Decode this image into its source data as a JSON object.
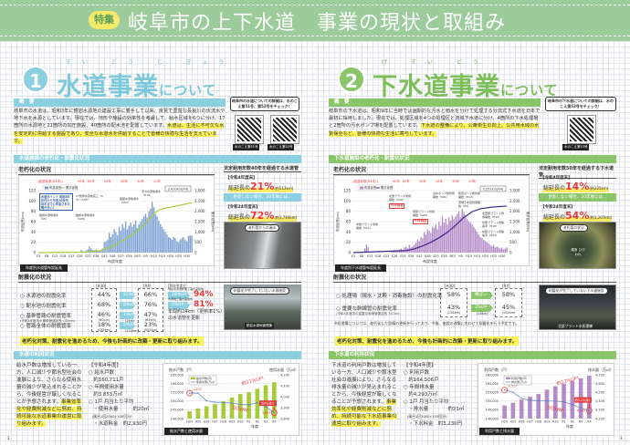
{
  "header": {
    "badge": "特集",
    "title": "岐阜市の上下水道　事業の現状と取組み"
  },
  "colors": {
    "water": "#8ccfe0",
    "sewer": "#8bc56a",
    "band": "#9ccc9c",
    "highlight": "#fbf35a",
    "accent_red": "#e6393b",
    "water_bar": "#7b9fd4",
    "water_line": "#a6cc3a",
    "sewer_bar": "#b48ac7",
    "sewer_line": "#3b2c8c"
  },
  "water": {
    "number": "1",
    "title_main": "水道事業",
    "title_suffix": "について",
    "ruby": "すい どう じ ぎょう",
    "overview_label": "概　要",
    "overview_text": "岐阜市の水道は、昭和3年に鏡岩水源地の建設工事に着手して以来、良質で豊富な長良川の伏流水や地下水を水源としています。現在では、地形や施設の効率性を考慮して、給水区域を6つに分け、17箇所の水源地と21箇所の加圧施設、40箇所の配水池を配置しています。",
    "overview_highlight": "水道は、生活に不可欠な水を安定的に供給する施設であり、安全な水道水を供給することで皆様の快適な生活を支えています。",
    "qr_bubble": "岐阜市の水道についての詳細は、水のこえ第51号、第52号をチェック！",
    "qr_labels": [
      "水のこえ第51号",
      "水のこえ第52号"
    ],
    "section_aging": "水道施設の老朽化・耐震化状況",
    "aging_label": "老朽化の状況",
    "aging_chart_caption": "年度別水道管布設延長",
    "aging_panel": {
      "title": "法定耐用年数40年を経過する水道管",
      "now_year": "【令和4年度末】",
      "now_prefix": "総延長の",
      "now_pct": "21%",
      "now_sub": "(約512km)",
      "note": "更新しない場合、20年後には…",
      "future_year": "【令和24年度末】",
      "future_prefix": "総延長の",
      "future_pct": "72%",
      "future_sub": "(約1,740km)",
      "photo_label": "老朽管からの漏水"
    },
    "quake_label": "耐震化の状況",
    "quake_headers": [
      "[H30]",
      "[R4]",
      "[R6(予定)]"
    ],
    "quake_rows": [
      {
        "label": "○ 水源池の耐震化率",
        "sub": "",
        "h30": "44%",
        "h30_km": "",
        "up": "22%UP",
        "r4": "66%",
        "r4_km": "",
        "up2": "28%UP",
        "r6": "94%",
        "r6_note": "現在水源池整備工事の実施中"
      },
      {
        "label": "○ 配水池の耐震化率",
        "sub": "",
        "h30": "68%",
        "h30_km": "",
        "up": "8%UP",
        "r4": "76%",
        "r4_km": "",
        "up2": "5%UP",
        "r6": "81%",
        "r6_note": "水源地工事の実施中"
      },
      {
        "label": "○ 基幹管路の耐震管率",
        "sub": "(令和4年度末の基幹管路延長 132km)",
        "h30": "46%",
        "h30_km": "(60km)",
        "up": "1%UP",
        "up_km": "(2km)",
        "r4": "47%",
        "r4_km": "(62km)"
      },
      {
        "label": "○ 管路全体の耐震管率",
        "sub": "",
        "h30": "18%",
        "h30_km": "(432km)",
        "up": "5%UP",
        "up_km": "(120km)",
        "r4": "23%",
        "r4_km": "(552km)"
      }
    ],
    "quake_plan": "年間約24km（更新率1%）の水道管を更新",
    "quake_photo_label": "耐震化が完了していない水源施設",
    "quake_photo_caption": "鏡岩水源地管理棟",
    "quake_highlight": "老朽化対策、耐震化を進めるため、今後も計画的に改築・更新に取り組みます。",
    "section_usage": "水道の利用状況",
    "usage_text": "給水戸数は増加している一方、人口減少や節水型社会の進展により、さらなる使用水量の減少が見込まれることから、今後経営が厳しくなることが予想されます。",
    "usage_highlight": "事業効率化や経費削減などに努め、持続可能な水道事業の運営に取り組みます。",
    "usage_info": {
      "year": "【令和4年度】",
      "items": [
        "○ 給水戸数",
        "　約160,711戸",
        "○ 年間使用水量",
        "　約3,853万㎥",
        "○ 1戸 月当たり平均",
        "　・使用水量　　　約20㎥",
        "　(風呂1回200ℓ×100回分)",
        "　・水道料金　約2,930円"
      ]
    },
    "usage_chart_caption": "給水戸数と使用水量",
    "page": "2"
  },
  "sewer": {
    "number": "2",
    "title_main": "下水道事業",
    "title_suffix": "について",
    "ruby": "げ すい どう",
    "overview_label": "概　要",
    "overview_text": "岐阜市の下水道は、昭和9年に当時では画期的な汚水と雨水を分けて処理する分流式下水道を日本で最初に採用しました。現在では、処理区域を4つの処理区と流域下水道に分け、4箇所の下水処理場と2箇所の汚水ポンプ場を配置しています。",
    "overview_highlight": "下水道の整備により、公衆衛生の向上、公共用水域の水質保全など、皆様の快適な生活に寄与しています。",
    "qr_bubble": "岐阜市の下水道についての詳細は、水のこえ第53号をチェック！",
    "qr_labels": [
      "水のこえ第53号"
    ],
    "section_aging": "下水道施設の老朽化・耐震化状況",
    "aging_label": "老朽化の状況",
    "aging_chart_caption": "年度別下水道管布設延長",
    "aging_panel": {
      "title": "法定耐用年数50年を経過する下水道管",
      "now_year": "【令和4年度末】",
      "now_prefix": "総延長の",
      "now_pct": "14%",
      "now_sub": "(約325km)",
      "note": "更新しない場合、20年後には…",
      "future_year": "【令和24年度末】",
      "future_prefix": "総延長の",
      "future_pct": "54%",
      "future_sub": "(約1,207km)",
      "photo_label": "老朽管の状況",
      "photo_sub": "腐食 ひびわれ"
    },
    "quake_label": "耐震化の状況",
    "quake_headers": [
      "[H30]",
      "[R4]"
    ],
    "quake_rows": [
      {
        "label": "○ 処理場（揚水・沈殿・消毒施設）の耐震化率",
        "sub": "",
        "h30": "58%",
        "h30_km": "",
        "up": "横ばい",
        "r4": "58%",
        "r4_km": ""
      },
      {
        "label": "○ 重要な幹線管の耐震化率",
        "sub": "(令和4年度末の重要な幹線管渠延長 341km)",
        "h30": "43%",
        "h30_km": "(138km)",
        "up": "2%UP",
        "up_km": "(16km)",
        "r4": "45%",
        "r4_km": "(154km)"
      }
    ],
    "quake_note": "※処理場については、老朽化した設備の更新を行っており、今後、施設の改築に合わせて耐震化を行う予定です。",
    "quake_photo_label": "耐震化が完了していない下水道施設",
    "quake_photo_caption": "北部プラント水処理棟",
    "quake_highlight": "老朽化対策、耐震化を進めるため、今後も計画的に改築・更新に取り組みます。",
    "section_usage": "下水道の利用状況",
    "usage_text": "下水道の利用戸数は増加している一方、人口減少や節水型社会の進展により、さらなる排水量の減少が見込まれることから、今後経営が厳しくなることが予想されます。",
    "usage_highlight": "事業効率化や経費削減などに努め、持続可能な下水道事業の運営に取り組みます。",
    "usage_info": {
      "year": "【令和4年度】",
      "items": [
        "○ 利用戸数",
        "　約164,506戸",
        "○ 年間排水量",
        "　約4,293万㎥",
        "○ 1戸 月当たり平均",
        "　・排水量　　　　約21㎥",
        "　(風呂1回200ℓ×105回分)",
        "　・下水料金　約3,230円"
      ]
    },
    "usage_chart_caption": "利用戸数と排水量",
    "page": "3"
  },
  "chart_data": [
    {
      "id": "water-aging",
      "type": "bar",
      "title": "",
      "xlabel": "布設年度",
      "ylabel": "布設延長(km)",
      "y2label": "累計延長(km)",
      "x_start_year": 1928,
      "x_tick_labels": [
        "S3",
        "S8",
        "S13",
        "S18",
        "S23",
        "S28",
        "S33",
        "S38",
        "S43",
        "S48",
        "S53",
        "S58",
        "S63",
        "H5",
        "H10",
        "H15",
        "H20",
        "H25",
        "H30"
      ],
      "ylim": [
        0,
        120
      ],
      "yticks": [
        0,
        20,
        40,
        60,
        80,
        100,
        120
      ],
      "y2lim": [
        0,
        3000
      ],
      "y2ticks": [
        0,
        500,
        1000,
        1500,
        2000,
        2500,
        3000
      ],
      "age_labels": [
        "(経過年数(R4末))",
        "90年",
        "60年",
        "50年",
        "40年",
        "30年",
        "20年"
      ],
      "series": [
        {
          "name": "布設延長",
          "values": [
            0,
            0,
            0,
            0,
            0,
            0,
            0,
            0,
            0,
            0,
            0,
            0,
            0,
            0,
            0,
            0,
            0,
            0,
            0,
            0,
            0,
            0,
            0,
            0,
            0,
            0,
            5,
            3,
            2,
            4,
            6,
            12,
            8,
            5,
            4,
            6,
            3,
            5,
            4,
            8,
            20,
            22,
            25,
            38,
            30,
            35,
            45,
            40,
            33,
            50,
            42,
            55,
            48,
            60,
            45,
            52,
            58,
            50,
            55,
            62,
            48,
            55,
            60,
            65,
            70,
            75,
            68,
            80,
            85,
            98,
            88,
            75,
            70,
            62,
            55,
            50,
            45,
            40,
            35,
            30,
            28,
            25,
            30,
            28,
            22,
            20,
            25,
            28,
            30,
            25,
            22,
            32,
            33,
            33
          ]
        },
        {
          "name": "累計延長",
          "points": [
            [
              1928,
              0
            ],
            [
              1955,
              20
            ],
            [
              1965,
              80
            ],
            [
              1970,
              200
            ],
            [
              1975,
              380
            ],
            [
              1980,
              620
            ],
            [
              1985,
              880
            ],
            [
              1990,
              1180
            ],
            [
              1995,
              1600
            ],
            [
              1998,
              1900
            ],
            [
              2002,
              2100
            ],
            [
              2010,
              2230
            ],
            [
              2021,
              2410
            ]
          ]
        }
      ],
      "annotations": [
        "鏡岩水源地通水（S5）",
        "雄総水源地通水（S28）",
        "27箇所水源地完工（S31～S38）",
        "水道ポイント 昭和50年代から平成10年代前半までに布設された管が多い！",
        "茜部水源地通水（S53）",
        "手力水源地通水（H10）",
        "2,410km(R4)"
      ]
    },
    {
      "id": "sewer-aging",
      "type": "bar",
      "title": "",
      "xlabel": "布設年度",
      "ylabel": "布設延長(km)",
      "y2label": "累計延長(km)",
      "x_start_year": 1928,
      "x_tick_labels": [
        "S3",
        "S8",
        "S13",
        "S18",
        "S23",
        "S28",
        "S33",
        "S38",
        "S43",
        "S48",
        "S53",
        "S58",
        "S63",
        "H5",
        "H10",
        "H15",
        "H20",
        "H25",
        "H30"
      ],
      "ylim": [
        0,
        120
      ],
      "yticks": [
        0,
        20,
        40,
        60,
        80,
        100,
        120
      ],
      "y2lim": [
        0,
        3000
      ],
      "y2ticks": [
        0,
        500,
        1000,
        1500,
        2000,
        2500,
        3000
      ],
      "age_labels": [
        "(経過年数(R4末))",
        "90年",
        "60年",
        "50年",
        "40年",
        "30年",
        "20年"
      ],
      "series": [
        {
          "name": "布設延長",
          "values": [
            0,
            0,
            0,
            0,
            0,
            0,
            0,
            8,
            15,
            10,
            0,
            0,
            0,
            0,
            0,
            0,
            0,
            0,
            0,
            0,
            0,
            0,
            0,
            3,
            2,
            5,
            4,
            3,
            6,
            8,
            5,
            10,
            12,
            8,
            15,
            10,
            12,
            15,
            20,
            25,
            22,
            30,
            28,
            40,
            35,
            45,
            42,
            38,
            50,
            48,
            55,
            45,
            60,
            52,
            70,
            58,
            65,
            55,
            68,
            62,
            72,
            65,
            70,
            75,
            80,
            68,
            85,
            78,
            72,
            65,
            60,
            58,
            55,
            50,
            45,
            40,
            35,
            30,
            28,
            25,
            22,
            20,
            18,
            15,
            12,
            15,
            10,
            12,
            10,
            8,
            10,
            6,
            8,
            10
          ]
        },
        {
          "name": "累計延長",
          "points": [
            [
              1928,
              0
            ],
            [
              1960,
              100
            ],
            [
              1965,
              180
            ],
            [
              1970,
              320
            ],
            [
              1975,
              500
            ],
            [
              1980,
              720
            ],
            [
              1985,
              980
            ],
            [
              1990,
              1320
            ],
            [
              1995,
              1700
            ],
            [
              2000,
              1980
            ],
            [
              2005,
              2120
            ],
            [
              2012,
              2200
            ],
            [
              2021,
              2252
            ]
          ]
        }
      ],
      "annotations": [
        "中部プラント供用開始（S12）",
        "北部プラント供用開始（S40）",
        "南部プラント供用開始（S40）",
        "浸水ポンプ場供用開始（S61）",
        "則武ポンプ場供用開始（H12）",
        "流域下水道供用開始（H3）",
        "北西部プラント供用開始（H15）",
        "中部プラント改築着手（H18）",
        "中部プラント改築着手（H21）",
        "2,252km(R4)",
        "57年経過",
        "51年経過"
      ]
    },
    {
      "id": "water-usage",
      "type": "bar+line",
      "title": "",
      "xlabel": "年度",
      "ylabel": "給水戸数（戸）",
      "y2label": "使用水量（万㎥）",
      "categories": [
        "H24",
        "H25",
        "H26",
        "H27",
        "H28",
        "H29",
        "H30",
        "R1",
        "R2",
        "R3",
        "R4"
      ],
      "ylim": [
        140000,
        165000
      ],
      "yticks": [
        "140,000",
        "145,000",
        "150,000",
        "155,000",
        "160,000",
        "165,000"
      ],
      "y2lim": [
        3800,
        4200
      ],
      "y2ticks": [
        "3,800",
        "3,900",
        "4,000",
        "4,100",
        "4,200"
      ],
      "series": [
        {
          "name": "給水戸数(戸)",
          "values": [
            144200,
            145800,
            147000,
            148200,
            149800,
            152000,
            154000,
            155000,
            157000,
            159000,
            160711
          ]
        },
        {
          "name": "使用水量(万㎥)",
          "values": [
            4032,
            4032,
            3962,
            3950,
            3948,
            3940,
            3930,
            3925,
            3945,
            3910,
            3853
          ]
        }
      ],
      "marked_values": [
        "4,032",
        "3,853"
      ],
      "annotations": [
        "約11%UP!",
        "DOWN!",
        "約4%減少"
      ]
    },
    {
      "id": "sewer-usage",
      "type": "bar+line",
      "title": "",
      "xlabel": "年度",
      "ylabel": "利用戸数（戸）",
      "y2label": "排水量（万㎥）",
      "categories": [
        "H24",
        "H25",
        "H26",
        "H27",
        "H28",
        "H29",
        "H30",
        "R1",
        "R2",
        "R3",
        "R4"
      ],
      "ylim": [
        140000,
        165000
      ],
      "yticks": [
        "140,000",
        "145,000",
        "150,000",
        "155,000",
        "160,000",
        "165,000"
      ],
      "y2lim": [
        4200,
        4700
      ],
      "y2ticks": [
        "4,200",
        "4,300",
        "4,400",
        "4,500",
        "4,600",
        "4,700"
      ],
      "series": [
        {
          "name": "利用戸数(戸)",
          "values": [
            147500,
            149000,
            150800,
            152500,
            154000,
            156500,
            158500,
            159800,
            161500,
            163000,
            164506
          ]
        },
        {
          "name": "排水量(万㎥)",
          "values": [
            4527,
            4500,
            4430,
            4410,
            4405,
            4400,
            4400,
            4390,
            4360,
            4320,
            4293
          ]
        }
      ],
      "marked_values": [
        "4,527",
        "4,293"
      ],
      "annotations": [
        "約12%UP!",
        "DOWN!",
        "約5.2%減少"
      ]
    }
  ]
}
